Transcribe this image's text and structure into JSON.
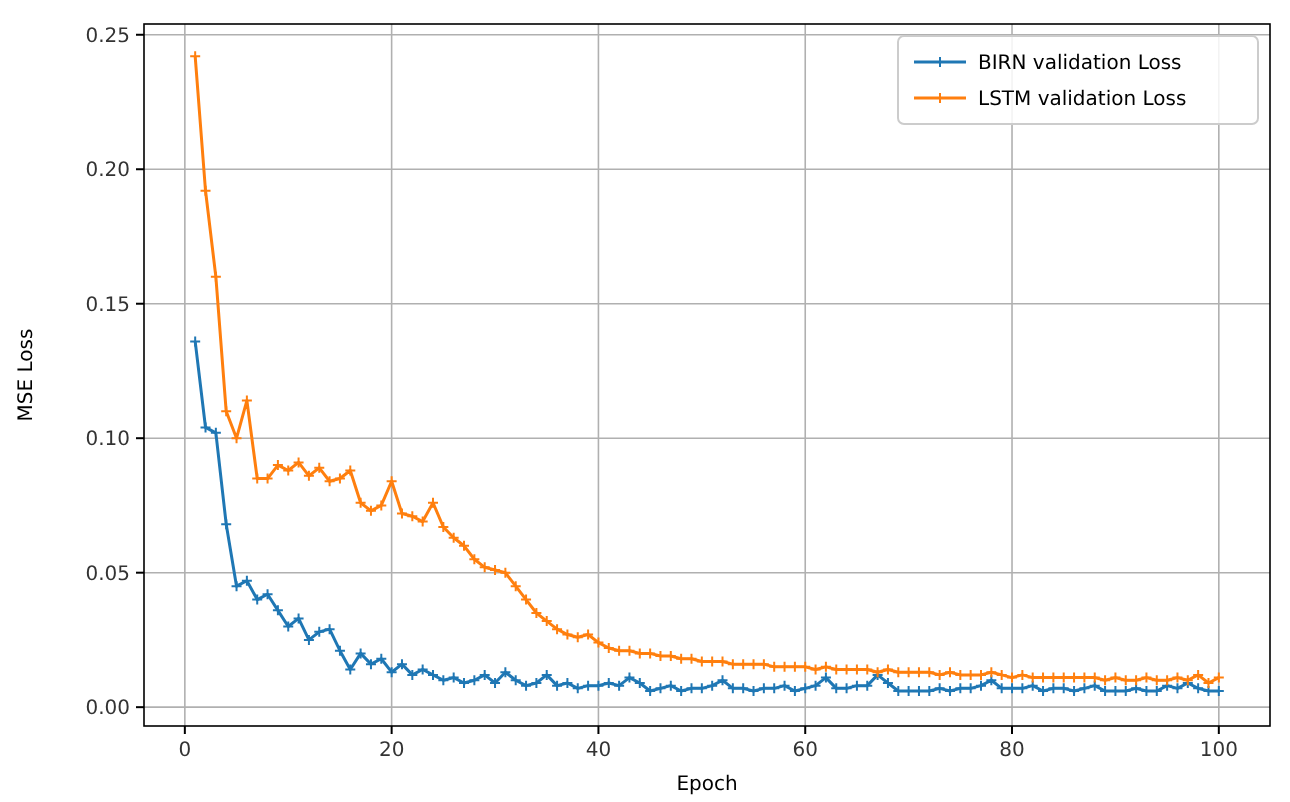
{
  "chart_data": {
    "type": "line",
    "xlabel": "Epoch",
    "ylabel": "MSE Loss",
    "xlim": [
      -3.95,
      104.95
    ],
    "ylim": [
      -0.007,
      0.254
    ],
    "xticks": [
      0,
      20,
      40,
      60,
      80,
      100
    ],
    "yticks": [
      {
        "value": 0,
        "label": "0.00"
      },
      {
        "value": 0.05,
        "label": "0.05"
      },
      {
        "value": 0.1,
        "label": "0.10"
      },
      {
        "value": 0.15,
        "label": "0.15"
      },
      {
        "value": 0.2,
        "label": "0.20"
      },
      {
        "value": 0.25,
        "label": "0.25"
      }
    ],
    "grid": true,
    "legend": "top right",
    "marker": "cross",
    "line_style": "solid",
    "x": [
      1,
      2,
      3,
      4,
      5,
      6,
      7,
      8,
      9,
      10,
      11,
      12,
      13,
      14,
      15,
      16,
      17,
      18,
      19,
      20,
      21,
      22,
      23,
      24,
      25,
      26,
      27,
      28,
      29,
      30,
      31,
      32,
      33,
      34,
      35,
      36,
      37,
      38,
      39,
      40,
      41,
      42,
      43,
      44,
      45,
      46,
      47,
      48,
      49,
      50,
      51,
      52,
      53,
      54,
      55,
      56,
      57,
      58,
      59,
      60,
      61,
      62,
      63,
      64,
      65,
      66,
      67,
      68,
      69,
      70,
      71,
      72,
      73,
      74,
      75,
      76,
      77,
      78,
      79,
      80,
      81,
      82,
      83,
      84,
      85,
      86,
      87,
      88,
      89,
      90,
      91,
      92,
      93,
      94,
      95,
      96,
      97,
      98,
      99,
      100
    ],
    "series": [
      {
        "name": "BIRN validation Loss",
        "color": "#1f77b4",
        "values": [
          0.136,
          0.104,
          0.102,
          0.068,
          0.045,
          0.047,
          0.04,
          0.042,
          0.036,
          0.03,
          0.033,
          0.025,
          0.028,
          0.029,
          0.021,
          0.014,
          0.02,
          0.016,
          0.018,
          0.013,
          0.016,
          0.012,
          0.014,
          0.012,
          0.01,
          0.011,
          0.009,
          0.01,
          0.012,
          0.009,
          0.013,
          0.01,
          0.008,
          0.009,
          0.012,
          0.008,
          0.009,
          0.007,
          0.008,
          0.008,
          0.009,
          0.008,
          0.011,
          0.009,
          0.006,
          0.007,
          0.008,
          0.006,
          0.007,
          0.007,
          0.008,
          0.01,
          0.007,
          0.007,
          0.006,
          0.007,
          0.007,
          0.008,
          0.006,
          0.007,
          0.008,
          0.011,
          0.007,
          0.007,
          0.008,
          0.008,
          0.012,
          0.009,
          0.006,
          0.006,
          0.006,
          0.006,
          0.007,
          0.006,
          0.007,
          0.007,
          0.008,
          0.01,
          0.007,
          0.007,
          0.007,
          0.008,
          0.006,
          0.007,
          0.007,
          0.006,
          0.007,
          0.008,
          0.006,
          0.006,
          0.006,
          0.007,
          0.006,
          0.006,
          0.008,
          0.007,
          0.009,
          0.007,
          0.006,
          0.006
        ]
      },
      {
        "name": "LSTM validation Loss",
        "color": "#ff7f0e",
        "values": [
          0.242,
          0.192,
          0.16,
          0.11,
          0.1,
          0.114,
          0.085,
          0.085,
          0.09,
          0.088,
          0.091,
          0.086,
          0.089,
          0.084,
          0.085,
          0.088,
          0.076,
          0.073,
          0.075,
          0.084,
          0.072,
          0.071,
          0.069,
          0.076,
          0.067,
          0.063,
          0.06,
          0.055,
          0.052,
          0.051,
          0.05,
          0.045,
          0.04,
          0.035,
          0.032,
          0.029,
          0.027,
          0.026,
          0.027,
          0.024,
          0.022,
          0.021,
          0.021,
          0.02,
          0.02,
          0.019,
          0.019,
          0.018,
          0.018,
          0.017,
          0.017,
          0.017,
          0.016,
          0.016,
          0.016,
          0.016,
          0.015,
          0.015,
          0.015,
          0.015,
          0.014,
          0.015,
          0.014,
          0.014,
          0.014,
          0.014,
          0.013,
          0.014,
          0.013,
          0.013,
          0.013,
          0.013,
          0.012,
          0.013,
          0.012,
          0.012,
          0.012,
          0.013,
          0.012,
          0.011,
          0.012,
          0.011,
          0.011,
          0.011,
          0.011,
          0.011,
          0.011,
          0.011,
          0.01,
          0.011,
          0.01,
          0.01,
          0.011,
          0.01,
          0.01,
          0.011,
          0.01,
          0.012,
          0.009,
          0.011
        ]
      }
    ]
  }
}
